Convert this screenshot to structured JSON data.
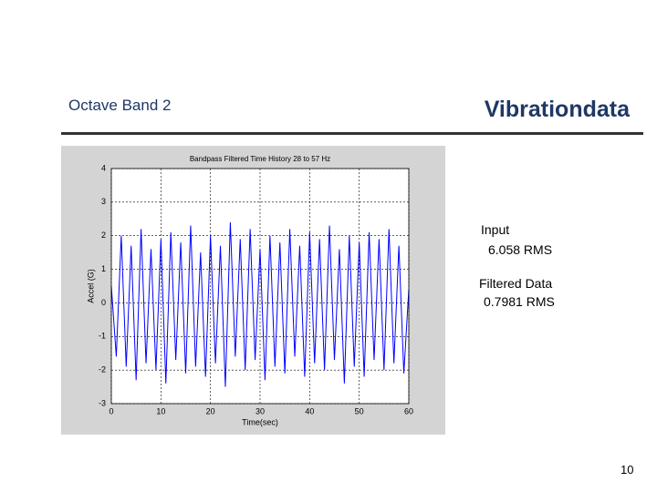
{
  "slide": {
    "title": "Octave Band 2",
    "brand": "Vibrationdata",
    "notes": [
      "Input",
      "6.058 RMS",
      "Filtered Data",
      "0.7981 RMS"
    ],
    "page_number": "10"
  },
  "chart_data": {
    "type": "line",
    "title": "Bandpass Filtered Time History 28 to 57 Hz",
    "x_label": "Time(sec)",
    "y_label": "Accel (G)",
    "x": [
      0,
      1,
      2,
      3,
      4,
      5,
      6,
      7,
      8,
      9,
      10,
      11,
      12,
      13,
      14,
      15,
      16,
      17,
      18,
      19,
      20,
      21,
      22,
      23,
      24,
      25,
      26,
      27,
      28,
      29,
      30,
      31,
      32,
      33,
      34,
      35,
      36,
      37,
      38,
      39,
      40,
      41,
      42,
      43,
      44,
      45,
      46,
      47,
      48,
      49,
      50,
      51,
      52,
      53,
      54,
      55,
      56,
      57,
      58,
      59,
      60
    ],
    "series": [
      {
        "color": "#0000ff",
        "values": [
          0.5,
          -1.6,
          2.0,
          -1.9,
          1.7,
          -2.3,
          2.2,
          -1.8,
          1.6,
          -2.0,
          1.9,
          -2.4,
          2.1,
          -1.7,
          1.8,
          -2.1,
          2.3,
          -1.9,
          1.5,
          -2.2,
          2.0,
          -1.8,
          1.7,
          -2.5,
          2.4,
          -1.6,
          1.9,
          -2.0,
          2.2,
          -1.7,
          1.6,
          -2.3,
          2.0,
          -1.9,
          1.8,
          -2.1,
          2.2,
          -1.6,
          1.7,
          -2.2,
          2.1,
          -1.8,
          1.9,
          -2.0,
          2.3,
          -1.7,
          1.6,
          -2.4,
          2.0,
          -1.9,
          1.8,
          -2.2,
          2.1,
          -1.7,
          1.9,
          -2.0,
          2.2,
          -1.8,
          1.7,
          -2.1,
          0.4
        ]
      }
    ],
    "xlim": [
      0,
      60
    ],
    "xticks": [
      0,
      10,
      20,
      30,
      40,
      50,
      60
    ],
    "ylim": [
      -3,
      4
    ],
    "yticks": [
      -3,
      -2,
      -1,
      0,
      1,
      2,
      3,
      4
    ],
    "grid": true
  }
}
